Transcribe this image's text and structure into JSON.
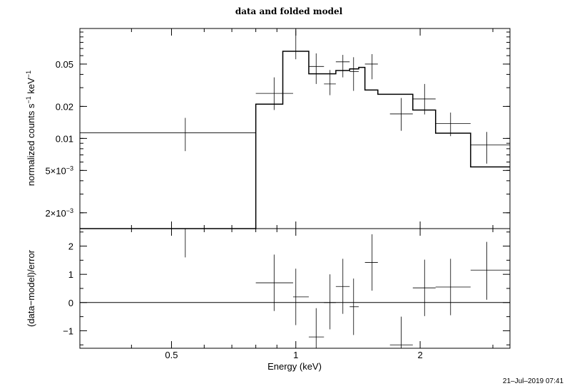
{
  "chart_data": {
    "type": "scatter",
    "title": "data and folded model",
    "timestamp": "21–Jul–2019 07:41",
    "xlabel": "Energy (keV)",
    "x_scale": "log",
    "xlim": [
      0.3,
      3.3
    ],
    "x_ticks": [
      {
        "value": 0.5,
        "label": "0.5"
      },
      {
        "value": 1,
        "label": "1"
      },
      {
        "value": 2,
        "label": "2"
      }
    ],
    "top_panel": {
      "ylabel_parts": [
        "normalized counts s",
        "−1",
        " keV",
        "−1"
      ],
      "y_scale": "log",
      "ylim": [
        0.00142,
        0.108
      ],
      "y_ticks": [
        {
          "value": 0.05,
          "label": "0.05"
        },
        {
          "value": 0.02,
          "label": "0.02"
        },
        {
          "value": 0.01,
          "label": "0.01"
        },
        {
          "value": 0.005,
          "label": "5×10",
          "exp": "−3"
        },
        {
          "value": 0.002,
          "label": "2×10",
          "exp": "−3"
        }
      ],
      "data": [
        {
          "x": 0.54,
          "xlo": 0.3,
          "xhi": 0.8,
          "y": 0.0113,
          "ylo": 0.0076,
          "yhi": 0.0156
        },
        {
          "x": 0.886,
          "xlo": 0.8,
          "xhi": 0.985,
          "y": 0.0265,
          "ylo": 0.0185,
          "yhi": 0.0375
        },
        {
          "x": 1.0,
          "xlo": 0.985,
          "xhi": 1.075,
          "y": 0.066,
          "ylo": 0.0555,
          "yhi": 0.104
        },
        {
          "x": 1.12,
          "xlo": 1.075,
          "xhi": 1.17,
          "y": 0.0475,
          "ylo": 0.0325,
          "yhi": 0.063
        },
        {
          "x": 1.21,
          "xlo": 1.17,
          "xhi": 1.25,
          "y": 0.0325,
          "ylo": 0.0255,
          "yhi": 0.044
        },
        {
          "x": 1.3,
          "xlo": 1.25,
          "xhi": 1.35,
          "y": 0.0525,
          "ylo": 0.0375,
          "yhi": 0.061
        },
        {
          "x": 1.38,
          "xlo": 1.35,
          "xhi": 1.42,
          "y": 0.0425,
          "ylo": 0.028,
          "yhi": 0.058
        },
        {
          "x": 1.53,
          "xlo": 1.47,
          "xhi": 1.58,
          "y": 0.05,
          "ylo": 0.036,
          "yhi": 0.062
        },
        {
          "x": 1.8,
          "xlo": 1.69,
          "xhi": 1.92,
          "y": 0.017,
          "ylo": 0.0118,
          "yhi": 0.024
        },
        {
          "x": 2.05,
          "xlo": 1.92,
          "xhi": 2.18,
          "y": 0.0235,
          "ylo": 0.0168,
          "yhi": 0.0325
        },
        {
          "x": 2.37,
          "xlo": 2.18,
          "xhi": 2.65,
          "y": 0.0138,
          "ylo": 0.0105,
          "yhi": 0.0175
        },
        {
          "x": 2.9,
          "xlo": 2.65,
          "xhi": 3.3,
          "y": 0.0087,
          "ylo": 0.0058,
          "yhi": 0.0115
        }
      ],
      "model_edges": [
        0.3,
        0.8,
        0.93,
        1.075,
        1.25,
        1.35,
        1.42,
        1.47,
        1.58,
        1.69,
        1.92,
        2.18,
        2.65,
        3.3
      ],
      "model_values": [
        0.00142,
        0.021,
        0.066,
        0.0405,
        0.0435,
        0.045,
        0.0465,
        0.0285,
        0.026,
        0.026,
        0.0185,
        0.0112,
        0.0054
      ]
    },
    "bottom_panel": {
      "ylabel": "(data−model)/error",
      "ylim": [
        -1.62,
        2.62
      ],
      "y_ticks": [
        {
          "value": 2,
          "label": "2"
        },
        {
          "value": 1,
          "label": "1"
        },
        {
          "value": 0,
          "label": "0"
        },
        {
          "value": -1,
          "label": "−1"
        }
      ],
      "zero_line": 0,
      "data": [
        {
          "x": 0.54,
          "xlo": 0.3,
          "xhi": 0.8,
          "y": 2.62,
          "ylo": 1.6,
          "yhi": 2.62
        },
        {
          "x": 0.886,
          "xlo": 0.8,
          "xhi": 0.985,
          "y": 0.7,
          "ylo": -0.3,
          "yhi": 1.7
        },
        {
          "x": 1.0,
          "xlo": 0.985,
          "xhi": 1.075,
          "y": 0.2,
          "ylo": -0.8,
          "yhi": 1.2
        },
        {
          "x": 1.12,
          "xlo": 1.075,
          "xhi": 1.17,
          "y": -1.22,
          "ylo": -1.62,
          "yhi": -0.2
        },
        {
          "x": 1.21,
          "xlo": 1.17,
          "xhi": 1.25,
          "y": 0.0,
          "ylo": -0.95,
          "yhi": 1.0
        },
        {
          "x": 1.3,
          "xlo": 1.25,
          "xhi": 1.35,
          "y": 0.57,
          "ylo": -0.4,
          "yhi": 1.55
        },
        {
          "x": 1.38,
          "xlo": 1.35,
          "xhi": 1.42,
          "y": -0.15,
          "ylo": -1.15,
          "yhi": 0.85
        },
        {
          "x": 1.53,
          "xlo": 1.47,
          "xhi": 1.58,
          "y": 1.42,
          "ylo": 0.42,
          "yhi": 2.42
        },
        {
          "x": 1.8,
          "xlo": 1.69,
          "xhi": 1.92,
          "y": -1.5,
          "ylo": -1.62,
          "yhi": -0.5
        },
        {
          "x": 2.05,
          "xlo": 1.92,
          "xhi": 2.18,
          "y": 0.52,
          "ylo": -0.48,
          "yhi": 1.52
        },
        {
          "x": 2.37,
          "xlo": 2.18,
          "xhi": 2.65,
          "y": 0.55,
          "ylo": -0.45,
          "yhi": 1.55
        },
        {
          "x": 2.9,
          "xlo": 2.65,
          "xhi": 3.3,
          "y": 1.15,
          "ylo": 0.1,
          "yhi": 2.15
        }
      ]
    }
  }
}
